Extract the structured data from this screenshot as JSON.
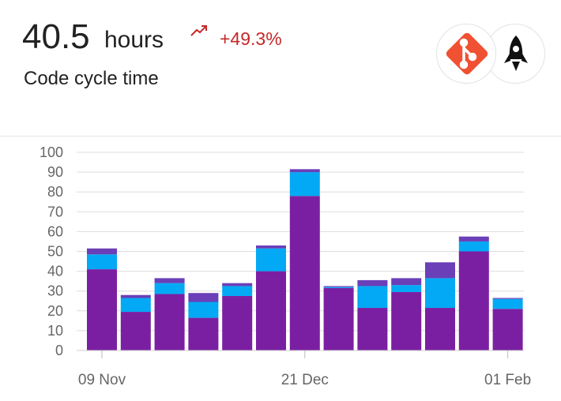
{
  "header": {
    "value": "40.5",
    "unit": "hours",
    "change": "+49.3%",
    "label": "Code cycle time",
    "trend_color": "#c62828",
    "trend_icon": "trending-up-icon"
  },
  "avatars": [
    {
      "name": "git-icon",
      "color": "#f05133"
    },
    {
      "name": "rocket-icon",
      "color": "#111111"
    }
  ],
  "chart_data": {
    "type": "bar",
    "stacked": true,
    "categories": [
      "",
      "",
      "",
      "",
      "",
      "",
      "",
      "",
      "",
      "",
      "",
      "",
      ""
    ],
    "x_tick_labels": [
      {
        "label": "09 Nov",
        "index": 0
      },
      {
        "label": "21 Dec",
        "index": 6
      },
      {
        "label": "01 Feb",
        "index": 12
      }
    ],
    "series": [
      {
        "color": "#7b1fa2",
        "values": [
          41,
          19.5,
          28.5,
          16.5,
          27.5,
          40,
          78,
          31.5,
          21.5,
          29.5,
          21.5,
          50,
          21
        ]
      },
      {
        "color": "#03a9f4",
        "values": [
          7.5,
          7,
          5.5,
          8,
          5,
          11.5,
          12,
          0.5,
          11,
          3.5,
          15,
          5,
          5
        ]
      },
      {
        "color": "#6a3fb8",
        "values": [
          3,
          1.5,
          2.5,
          4.5,
          1.5,
          1.5,
          1.5,
          0.5,
          3,
          3.5,
          8,
          2.5,
          0.5
        ]
      }
    ],
    "ylim": [
      0,
      100
    ],
    "yticks": [
      0,
      10,
      20,
      30,
      40,
      50,
      60,
      70,
      80,
      90,
      100
    ],
    "grid": true,
    "xlabel": "",
    "ylabel": ""
  }
}
